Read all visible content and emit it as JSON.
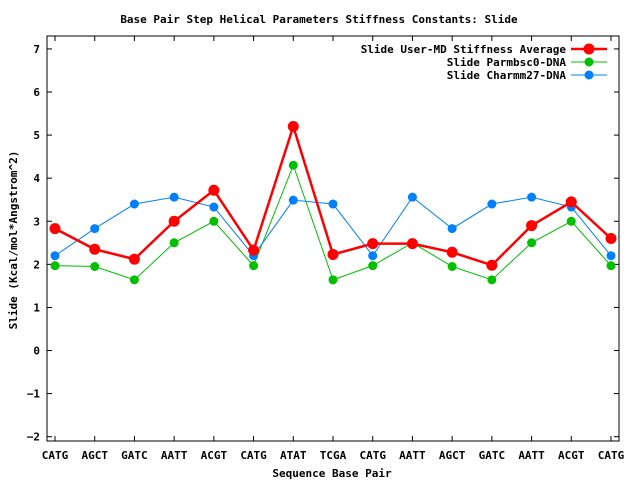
{
  "chart_data": {
    "type": "line",
    "title": "Base Pair Step Helical Parameters Stiffness Constants: Slide",
    "xlabel": "Sequence Base Pair",
    "ylabel": "Slide (Kcal/mol*Angstrom^2)",
    "categories": [
      "CATG",
      "AGCT",
      "GATC",
      "AATT",
      "ACGT",
      "CATG",
      "ATAT",
      "TCGA",
      "CATG",
      "AATT",
      "AGCT",
      "GATC",
      "AATT",
      "ACGT",
      "CATG"
    ],
    "ylim": [
      -2.1,
      7.3
    ],
    "yticks": [
      -2,
      -1,
      0,
      1,
      2,
      3,
      4,
      5,
      6,
      7
    ],
    "grid": false,
    "legend_position": "top-right",
    "series": [
      {
        "name": "Slide User-MD Stiffness Average",
        "color": "#ff0000",
        "values": [
          2.83,
          2.35,
          2.12,
          3.0,
          3.72,
          2.33,
          5.2,
          2.23,
          2.48,
          2.48,
          2.28,
          1.98,
          2.9,
          3.45,
          2.6
        ]
      },
      {
        "name": "Slide Parmbsc0-DNA",
        "color": "#00c000",
        "values": [
          1.97,
          1.95,
          1.64,
          2.5,
          3.0,
          1.97,
          4.3,
          1.64,
          1.97,
          2.5,
          1.95,
          1.64,
          2.5,
          3.0,
          1.97
        ]
      },
      {
        "name": "Slide Charmm27-DNA",
        "color": "#0080ff",
        "values": [
          2.2,
          2.83,
          3.4,
          3.56,
          3.33,
          2.2,
          3.49,
          3.4,
          2.2,
          3.56,
          2.83,
          3.4,
          3.56,
          3.33,
          2.2
        ]
      }
    ]
  }
}
